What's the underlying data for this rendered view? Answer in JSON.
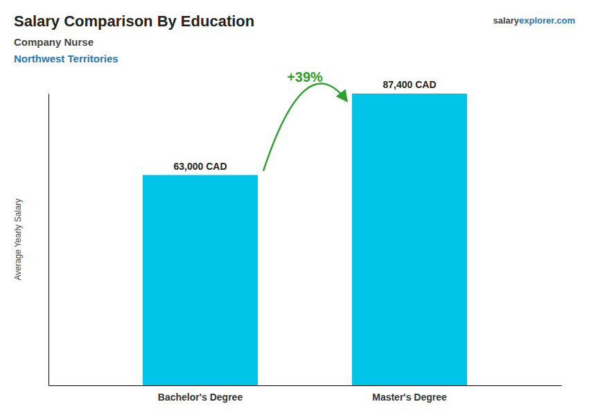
{
  "chart_data": {
    "type": "bar",
    "title": "Salary Comparison By Education",
    "subtitle": "Company Nurse",
    "y_label": "Average Yearly Salary",
    "categories": [
      "Bachelor's Degree",
      "Master's Degree"
    ],
    "values": [
      63000,
      87400
    ],
    "value_labels": [
      "63,000 CAD",
      "87,400 CAD"
    ],
    "color": "#00C5E8",
    "ylim": [
      0,
      87400
    ],
    "data_labels": true,
    "tick_labels": "x",
    "annotations": [
      "Northwest Territories",
      "salary",
      "explorer.com",
      "+39%"
    ]
  }
}
